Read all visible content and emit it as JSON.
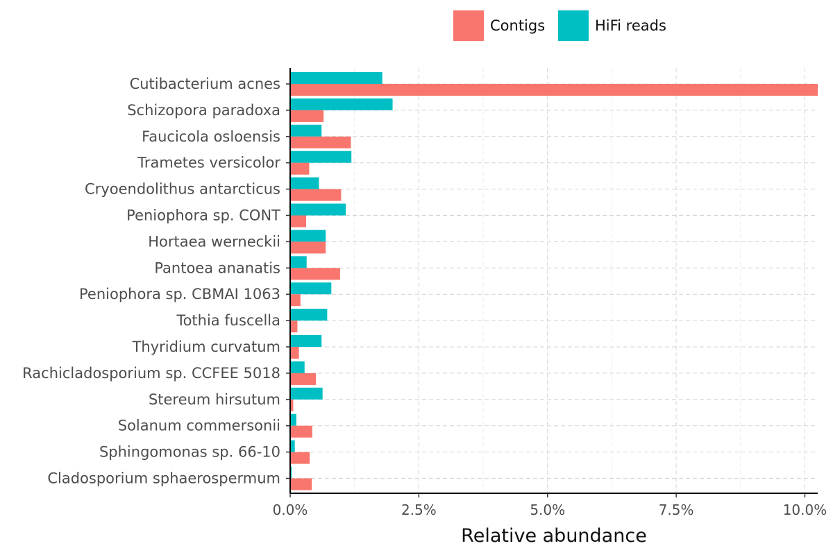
{
  "chart_data": {
    "type": "bar",
    "orientation": "horizontal",
    "title": "",
    "xlabel": "Relative abundance",
    "ylabel": "",
    "xlim": [
      0,
      10.25
    ],
    "x_ticks": [
      0,
      2.5,
      5.0,
      7.5,
      10.0
    ],
    "x_tick_labels": [
      "0.0%",
      "2.5%",
      "5.0%",
      "7.5%",
      "10.0%"
    ],
    "grid": true,
    "legend_position": "top",
    "categories": [
      "Cutibacterium acnes",
      "Schizopora paradoxa",
      "Faucicola osloensis",
      "Trametes versicolor",
      "Cryoendolithus antarcticus",
      "Peniophora sp. CONT",
      "Hortaea werneckii",
      "Pantoea ananatis",
      "Peniophora sp. CBMAI 1063",
      "Tothia fuscella",
      "Thyridium curvatum",
      "Rachicladosporium sp. CCFEE 5018",
      "Stereum hirsutum",
      "Solanum commersonii",
      "Sphingomonas sp. 66-10",
      "Cladosporium sphaerospermum"
    ],
    "series": [
      {
        "name": "Contigs",
        "color": "#F8766D",
        "values": [
          10.25,
          0.65,
          1.18,
          0.37,
          0.99,
          0.31,
          0.69,
          0.97,
          0.2,
          0.14,
          0.17,
          0.5,
          0.06,
          0.43,
          0.38,
          0.42
        ]
      },
      {
        "name": "HiFi reads",
        "color": "#00BFC4",
        "values": [
          1.79,
          1.99,
          0.61,
          1.19,
          0.56,
          1.08,
          0.69,
          0.32,
          0.8,
          0.72,
          0.61,
          0.28,
          0.63,
          0.12,
          0.09,
          0.03
        ]
      }
    ]
  }
}
